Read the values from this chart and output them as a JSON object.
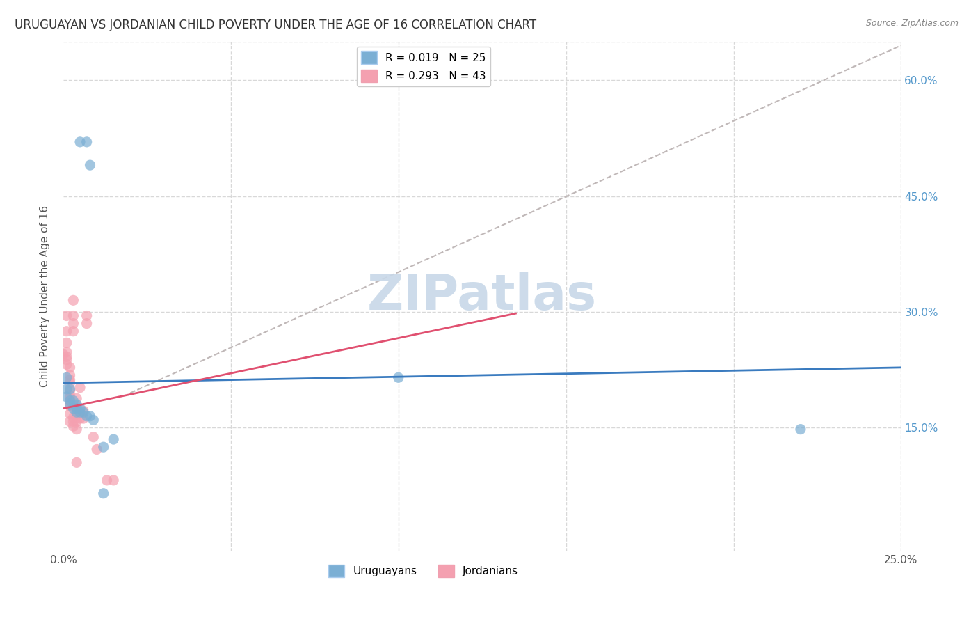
{
  "title": "URUGUAYAN VS JORDANIAN CHILD POVERTY UNDER THE AGE OF 16 CORRELATION CHART",
  "source": "Source: ZipAtlas.com",
  "ylabel": "Child Poverty Under the Age of 16",
  "xlim": [
    0.0,
    0.25
  ],
  "ylim": [
    -0.01,
    0.65
  ],
  "yticks": [
    0.15,
    0.3,
    0.45,
    0.6
  ],
  "ytick_labels": [
    "15.0%",
    "30.0%",
    "45.0%",
    "60.0%"
  ],
  "xticks": [
    0.0,
    0.05,
    0.1,
    0.15,
    0.2,
    0.25
  ],
  "xtick_labels": [
    "0.0%",
    "",
    "",
    "",
    "",
    "25.0%"
  ],
  "legend_entries": [
    {
      "label": "R = 0.019   N = 25",
      "color": "#7bafd4"
    },
    {
      "label": "R = 0.293   N = 43",
      "color": "#f4a0b0"
    }
  ],
  "uruguayan_points": [
    [
      0.005,
      0.52
    ],
    [
      0.007,
      0.52
    ],
    [
      0.008,
      0.49
    ],
    [
      0.001,
      0.215
    ],
    [
      0.001,
      0.2
    ],
    [
      0.001,
      0.19
    ],
    [
      0.002,
      0.2
    ],
    [
      0.002,
      0.185
    ],
    [
      0.002,
      0.18
    ],
    [
      0.003,
      0.185
    ],
    [
      0.003,
      0.175
    ],
    [
      0.004,
      0.18
    ],
    [
      0.004,
      0.175
    ],
    [
      0.004,
      0.17
    ],
    [
      0.005,
      0.175
    ],
    [
      0.005,
      0.17
    ],
    [
      0.006,
      0.17
    ],
    [
      0.007,
      0.165
    ],
    [
      0.008,
      0.165
    ],
    [
      0.009,
      0.16
    ],
    [
      0.012,
      0.125
    ],
    [
      0.015,
      0.135
    ],
    [
      0.1,
      0.215
    ],
    [
      0.22,
      0.148
    ],
    [
      0.012,
      0.065
    ]
  ],
  "jordanian_points": [
    [
      0.0,
      0.245
    ],
    [
      0.001,
      0.295
    ],
    [
      0.001,
      0.275
    ],
    [
      0.001,
      0.26
    ],
    [
      0.001,
      0.248
    ],
    [
      0.001,
      0.242
    ],
    [
      0.001,
      0.238
    ],
    [
      0.001,
      0.232
    ],
    [
      0.002,
      0.228
    ],
    [
      0.002,
      0.218
    ],
    [
      0.002,
      0.212
    ],
    [
      0.002,
      0.208
    ],
    [
      0.002,
      0.198
    ],
    [
      0.002,
      0.192
    ],
    [
      0.002,
      0.188
    ],
    [
      0.002,
      0.182
    ],
    [
      0.002,
      0.178
    ],
    [
      0.002,
      0.168
    ],
    [
      0.002,
      0.158
    ],
    [
      0.003,
      0.315
    ],
    [
      0.003,
      0.295
    ],
    [
      0.003,
      0.285
    ],
    [
      0.003,
      0.275
    ],
    [
      0.003,
      0.163
    ],
    [
      0.003,
      0.158
    ],
    [
      0.003,
      0.152
    ],
    [
      0.004,
      0.188
    ],
    [
      0.004,
      0.178
    ],
    [
      0.004,
      0.168
    ],
    [
      0.004,
      0.158
    ],
    [
      0.004,
      0.148
    ],
    [
      0.004,
      0.105
    ],
    [
      0.005,
      0.168
    ],
    [
      0.005,
      0.162
    ],
    [
      0.005,
      0.202
    ],
    [
      0.006,
      0.172
    ],
    [
      0.006,
      0.162
    ],
    [
      0.007,
      0.295
    ],
    [
      0.007,
      0.285
    ],
    [
      0.01,
      0.122
    ],
    [
      0.013,
      0.082
    ],
    [
      0.015,
      0.082
    ],
    [
      0.009,
      0.138
    ]
  ],
  "blue_line": {
    "x0": 0.0,
    "y0": 0.208,
    "x1": 0.25,
    "y1": 0.228
  },
  "pink_line": {
    "x0": 0.0,
    "y0": 0.175,
    "x1": 0.135,
    "y1": 0.298
  },
  "gray_dash_line": {
    "x0": 0.02,
    "y0": 0.195,
    "x1": 0.25,
    "y1": 0.645
  },
  "background_color": "#ffffff",
  "grid_color": "#d8d8d8",
  "title_fontsize": 12,
  "axis_label_fontsize": 11,
  "tick_fontsize": 11,
  "dot_size": 120,
  "blue_color": "#7bafd4",
  "pink_color": "#f4a0b0",
  "blue_line_color": "#3a7bbf",
  "pink_line_color": "#e05070",
  "gray_dash_color": "#c0b8b8",
  "watermark_text": "ZIPatlas",
  "watermark_color": "#c8d8e8",
  "watermark_fontsize": 52
}
